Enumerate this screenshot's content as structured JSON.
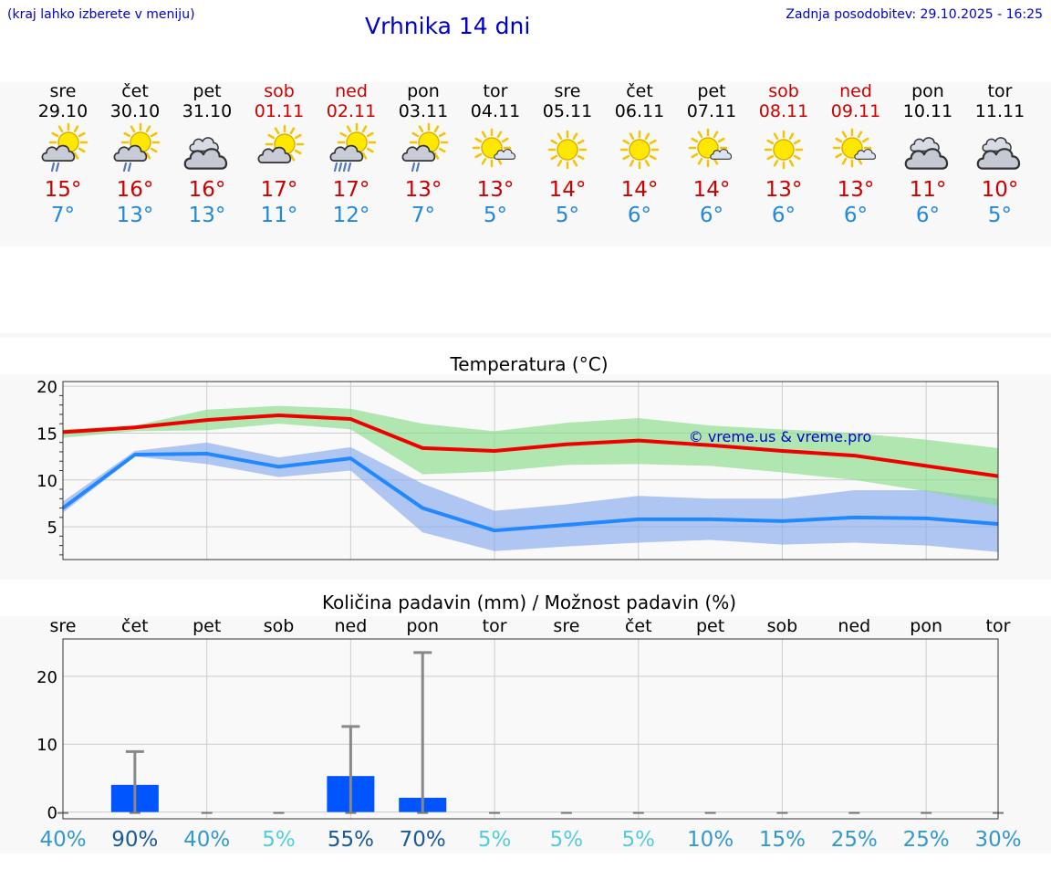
{
  "header": {
    "hint": "(kraj lahko izberete v meniju)",
    "title": "Vrhnika 14 dni",
    "updated_label": "Zadnja posodobitev: 29.10.2025 - 16:25"
  },
  "days": [
    {
      "name": "sre",
      "date": "29.10",
      "weekend": false,
      "icon": "sun-cloud-drizzle-icon",
      "tmax": "15°",
      "tmin": "7°"
    },
    {
      "name": "čet",
      "date": "30.10",
      "weekend": false,
      "icon": "sun-cloud-drizzle-icon",
      "tmax": "16°",
      "tmin": "13°"
    },
    {
      "name": "pet",
      "date": "31.10",
      "weekend": false,
      "icon": "cloudy-icon",
      "tmax": "16°",
      "tmin": "13°"
    },
    {
      "name": "sob",
      "date": "01.11",
      "weekend": true,
      "icon": "sun-cloud-icon",
      "tmax": "17°",
      "tmin": "11°"
    },
    {
      "name": "ned",
      "date": "02.11",
      "weekend": true,
      "icon": "sun-cloud-rain-icon",
      "tmax": "17°",
      "tmin": "12°"
    },
    {
      "name": "pon",
      "date": "03.11",
      "weekend": false,
      "icon": "sun-cloud-drizzle-icon",
      "tmax": "13°",
      "tmin": "7°"
    },
    {
      "name": "tor",
      "date": "04.11",
      "weekend": false,
      "icon": "sun-small-cloud-icon",
      "tmax": "13°",
      "tmin": "5°"
    },
    {
      "name": "sre",
      "date": "05.11",
      "weekend": false,
      "icon": "sun-icon",
      "tmax": "14°",
      "tmin": "5°"
    },
    {
      "name": "čet",
      "date": "06.11",
      "weekend": false,
      "icon": "sun-icon",
      "tmax": "14°",
      "tmin": "6°"
    },
    {
      "name": "pet",
      "date": "07.11",
      "weekend": false,
      "icon": "sun-small-cloud-icon",
      "tmax": "14°",
      "tmin": "6°"
    },
    {
      "name": "sob",
      "date": "08.11",
      "weekend": true,
      "icon": "sun-icon",
      "tmax": "13°",
      "tmin": "6°"
    },
    {
      "name": "ned",
      "date": "09.11",
      "weekend": true,
      "icon": "sun-small-cloud-icon",
      "tmax": "13°",
      "tmin": "6°"
    },
    {
      "name": "pon",
      "date": "10.11",
      "weekend": false,
      "icon": "cloudy-icon",
      "tmax": "11°",
      "tmin": "6°"
    },
    {
      "name": "tor",
      "date": "11.11",
      "weekend": false,
      "icon": "cloudy-icon",
      "tmax": "10°",
      "tmin": "5°"
    }
  ],
  "chart_data": [
    {
      "type": "line",
      "title": "Temperatura (°C)",
      "watermark": "© vreme.us & vreme.pro",
      "x": [
        "sre",
        "čet",
        "pet",
        "sob",
        "ned",
        "pon",
        "tor",
        "sre",
        "čet",
        "pet",
        "sob",
        "ned",
        "pon",
        "tor"
      ],
      "ylim": [
        1.5,
        20.5
      ],
      "yticks": [
        5,
        10,
        15,
        20
      ],
      "series": [
        {
          "name": "max",
          "color": "#ee0000",
          "values": [
            15.1,
            15.6,
            16.4,
            16.9,
            16.5,
            13.4,
            13.1,
            13.8,
            14.2,
            13.7,
            13.1,
            12.6,
            11.5,
            10.4
          ],
          "band_low": [
            14.5,
            15.2,
            15.3,
            16.0,
            15.4,
            10.6,
            10.9,
            11.6,
            11.7,
            11.5,
            10.8,
            10.0,
            8.8,
            7.2
          ],
          "band_high": [
            15.4,
            15.8,
            17.5,
            17.9,
            17.6,
            16.0,
            15.2,
            16.1,
            16.6,
            15.8,
            15.4,
            15.0,
            14.3,
            13.4
          ]
        },
        {
          "name": "min",
          "color": "#2288ff",
          "values": [
            7.0,
            12.7,
            12.8,
            11.4,
            12.3,
            7.0,
            4.6,
            5.2,
            5.8,
            5.8,
            5.6,
            6.0,
            5.9,
            5.3
          ],
          "band_low": [
            6.5,
            12.5,
            11.7,
            10.3,
            11.0,
            4.4,
            2.4,
            2.9,
            3.3,
            3.6,
            3.1,
            3.3,
            3.0,
            2.3
          ],
          "band_high": [
            7.7,
            13.1,
            14.0,
            12.4,
            13.5,
            9.6,
            6.7,
            7.4,
            8.3,
            8.0,
            8.0,
            8.9,
            8.9,
            8.0
          ]
        }
      ]
    },
    {
      "type": "bar",
      "title": "Količina padavin (mm) / Možnost padavin (%)",
      "categories": [
        "sre",
        "čet",
        "pet",
        "sob",
        "ned",
        "pon",
        "tor",
        "sre",
        "čet",
        "pet",
        "sob",
        "ned",
        "pon",
        "tor"
      ],
      "ylim": [
        -1,
        25.5
      ],
      "yticks": [
        0,
        10,
        20
      ],
      "values": [
        0,
        4.0,
        0,
        0,
        5.3,
        2.1,
        0,
        0,
        0,
        0,
        0,
        0,
        0,
        0
      ],
      "max_values": [
        0,
        8.9,
        0,
        0,
        12.6,
        23.5,
        0,
        0,
        0,
        0,
        0,
        0,
        0,
        0
      ],
      "probability": [
        "40%",
        "90%",
        "40%",
        "5%",
        "55%",
        "70%",
        "5%",
        "5%",
        "5%",
        "10%",
        "15%",
        "25%",
        "25%",
        "30%"
      ],
      "probability_colors": [
        "#3399cc",
        "#1a5a99",
        "#3399cc",
        "#55ccdd",
        "#1a5a99",
        "#1a5a99",
        "#55ccdd",
        "#55ccdd",
        "#55ccdd",
        "#3399cc",
        "#3399cc",
        "#3399cc",
        "#3399cc",
        "#3399cc"
      ]
    }
  ]
}
